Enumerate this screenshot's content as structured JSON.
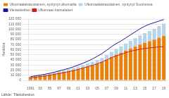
{
  "chart_data": {
    "type": "bar",
    "categories": [
      "1991",
      null,
      "93",
      null,
      "95",
      null,
      "97",
      null,
      "99",
      null,
      "01",
      null,
      "03",
      null,
      "05",
      null,
      "07",
      null,
      "09",
      null,
      "11",
      null,
      "13",
      null,
      "15",
      null,
      "17",
      null,
      "19"
    ],
    "series": [
      {
        "name": "Ulkomaalaistaustainen, syntynyt ulkomailla",
        "type": "bar",
        "color": "#E8820A",
        "values": [
          6500,
          7500,
          8800,
          10200,
          11500,
          13000,
          14800,
          16500,
          18200,
          20000,
          22000,
          24500,
          27000,
          29500,
          32500,
          36000,
          40500,
          45500,
          50000,
          54000,
          58000,
          62000,
          66000,
          70000,
          73500,
          76500,
          79500,
          83500,
          87000
        ]
      },
      {
        "name": "Ulkomaalaistaustainen, syntynyt Suomessa",
        "type": "bar",
        "color": "#B8D4EA",
        "values": [
          1200,
          1500,
          1700,
          2000,
          2300,
          2600,
          3000,
          3400,
          3900,
          4400,
          5000,
          5600,
          6200,
          6800,
          7400,
          8000,
          9000,
          10200,
          11500,
          12800,
          14000,
          15200,
          16500,
          17800,
          19000,
          20200,
          21500,
          22800,
          24000
        ]
      },
      {
        "name": "Vieraskieliset",
        "type": "line",
        "color": "#1A1A8C",
        "values": [
          7200,
          8800,
          10300,
          12000,
          13800,
          16000,
          18500,
          21000,
          23500,
          26500,
          30000,
          33500,
          37500,
          42000,
          47000,
          52500,
          59000,
          66000,
          72000,
          77000,
          83000,
          89000,
          95000,
          101000,
          106000,
          110000,
          113000,
          116000,
          119000
        ]
      },
      {
        "name": "Ulkomaan kansalaiset",
        "type": "line",
        "color": "#CC2020",
        "values": [
          5000,
          6200,
          7300,
          8600,
          10000,
          11800,
          13500,
          15200,
          17000,
          19000,
          21500,
          24000,
          26800,
          29500,
          32500,
          36000,
          40000,
          44500,
          48000,
          51000,
          54000,
          57000,
          59000,
          61000,
          62500,
          63500,
          64500,
          65500,
          66000
        ]
      }
    ],
    "stacked": true,
    "ylabel": "Henkilöä",
    "ylim": [
      0,
      120000
    ],
    "yticks": [
      0,
      {
        "value": 10000,
        "label": "10 000"
      },
      {
        "value": 20000,
        "label": "20 000"
      },
      {
        "value": 30000,
        "label": "30 000"
      },
      {
        "value": 40000,
        "label": "40 000"
      },
      {
        "value": 50000,
        "label": "50 000"
      },
      {
        "value": 60000,
        "label": "60 000"
      },
      {
        "value": 70000,
        "label": "70 000"
      },
      {
        "value": 80000,
        "label": "80 000"
      },
      {
        "value": 90000,
        "label": "90 000"
      },
      {
        "value": 100000,
        "label": "100 000"
      },
      {
        "value": 110000,
        "label": "110 000"
      },
      {
        "value": 120000,
        "label": "120 000"
      }
    ],
    "grid": "y",
    "legend": "upper left",
    "annotations": [
      "Lähde: Tilastokeskus"
    ]
  }
}
